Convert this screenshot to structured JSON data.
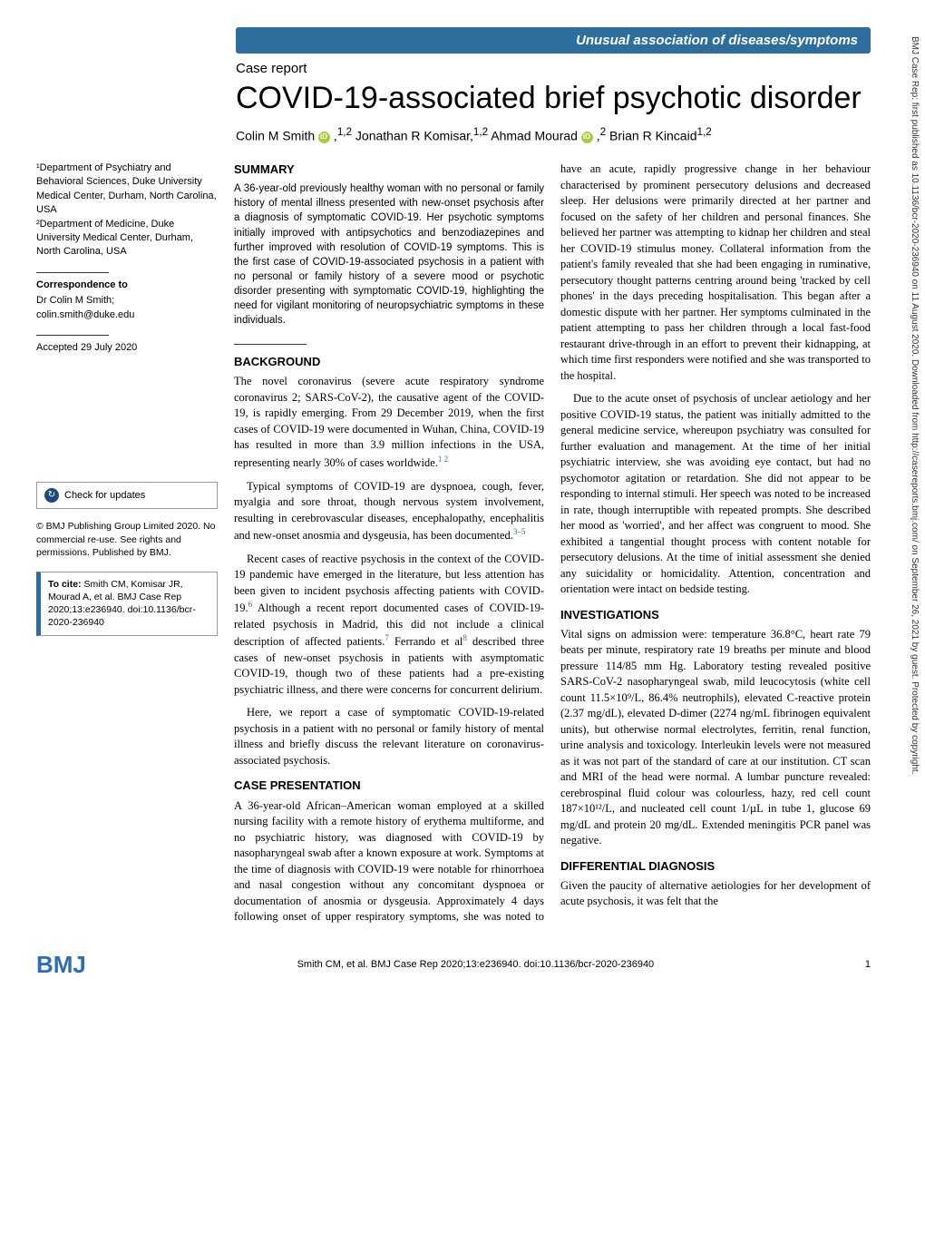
{
  "banner": "Unusual association of diseases/symptoms",
  "case_report_label": "Case report",
  "title": "COVID-19-associated brief psychotic disorder",
  "authors": {
    "a1": "Colin M Smith",
    "a1_aff": "1,2",
    "a2": "Jonathan R Komisar,",
    "a2_aff": "1,2",
    "a3": "Ahmad Mourad",
    "a3_aff": "2",
    "a4": "Brian R Kincaid",
    "a4_aff": "1,2"
  },
  "affil": {
    "l1": "¹Department of Psychiatry and Behavioral Sciences, Duke University Medical Center, Durham, North Carolina, USA",
    "l2": "²Department of Medicine, Duke University Medical Center, Durham, North Carolina, USA"
  },
  "correspondence": {
    "label": "Correspondence to",
    "body": "Dr Colin M Smith;\ncolin.smith@duke.edu"
  },
  "accepted": "Accepted 29 July 2020",
  "check_updates": "Check for updates",
  "copyright": "© BMJ Publishing Group Limited 2020. No commercial re-use. See rights and permissions. Published by BMJ.",
  "cite": {
    "label": "To cite:",
    "body": " Smith CM, Komisar JR, Mourad A, et al. BMJ Case Rep 2020;13:e236940. doi:10.1136/bcr-2020-236940"
  },
  "summary": {
    "head": "SUMMARY",
    "body": "A 36-year-old previously healthy woman with no personal or family history of mental illness presented with new-onset psychosis after a diagnosis of symptomatic COVID-19. Her psychotic symptoms initially improved with antipsychotics and benzodiazepines and further improved with resolution of COVID-19 symptoms. This is the first case of COVID-19-associated psychosis in a patient with no personal or family history of a severe mood or psychotic disorder presenting with symptomatic COVID-19, highlighting the need for vigilant monitoring of neuropsychiatric symptoms in these individuals."
  },
  "background": {
    "head": "BACKGROUND",
    "p1": "The novel coronavirus (severe acute respiratory syndrome coronavirus 2; SARS-CoV-2), the causative agent of the COVID-19, is rapidly emerging. From 29 December 2019, when the first cases of COVID-19 were documented in Wuhan, China, COVID-19 has resulted in more than 3.9 million infections in the USA, representing nearly 30% of cases worldwide.",
    "p1_ref": "1 2",
    "p2": "Typical symptoms of COVID-19 are dyspnoea, cough, fever, myalgia and sore throat, though nervous system involvement, resulting in cerebrovascular diseases, encephalopathy, encephalitis and new-onset anosmia and dysgeusia, has been documented.",
    "p2_ref": "3–5",
    "p3a": "Recent cases of reactive psychosis in the context of the COVID-19 pandemic have emerged in the literature, but less attention has been given to incident psychosis affecting patients with COVID-19.",
    "p3_ref1": "6",
    "p3b": " Although a recent report documented cases of COVID-19-related psychosis in Madrid, this did not include a clinical description of affected patients.",
    "p3_ref2": "7",
    "p3c": " Ferrando et al",
    "p3_ref3": "8",
    "p3d": " described three cases of new-onset psychosis in patients with asymptomatic COVID-19, though two of these patients had a pre-existing psychiatric illness, and there were concerns for concurrent delirium.",
    "p4": "Here, we report a case of symptomatic COVID-19-related psychosis in a patient with no personal or family history of mental illness and briefly discuss the relevant literature on coronavirus-associated psychosis."
  },
  "case_presentation": {
    "head": "CASE PRESENTATION",
    "p1": "A 36-year-old African–American woman employed at a skilled nursing facility with a remote history of erythema multiforme, and no psychiatric history, was diagnosed with COVID-19 by nasopharyngeal swab after a known exposure at work. Symptoms at the time of diagnosis with COVID-19 were notable for rhinorrhoea and nasal congestion without any concomitant dyspnoea or documentation of anosmia or dysgeusia. Approximately 4 days following onset of upper respiratory symptoms, she was noted to have an acute, rapidly progressive change in her behaviour characterised by prominent persecutory delusions and decreased sleep. Her delusions were primarily directed at her partner and focused on the safety of her children and personal finances. She believed her partner was attempting to kidnap her children and steal her COVID-19 stimulus money. Collateral information from the patient's family revealed that she had been engaging in ruminative, persecutory thought patterns centring around being 'tracked by cell phones' in the days preceding hospitalisation. This began after a domestic dispute with her partner. Her symptoms culminated in the patient attempting to pass her children through a local fast-food restaurant drive-through in an effort to prevent their kidnapping, at which time first responders were notified and she was transported to the hospital.",
    "p2": "Due to the acute onset of psychosis of unclear aetiology and her positive COVID-19 status, the patient was initially admitted to the general medicine service, whereupon psychiatry was consulted for further evaluation and management. At the time of her initial psychiatric interview, she was avoiding eye contact, but had no psychomotor agitation or retardation. She did not appear to be responding to internal stimuli. Her speech was noted to be increased in rate, though interruptible with repeated prompts. She described her mood as 'worried', and her affect was congruent to mood. She exhibited a tangential thought process with content notable for persecutory delusions. At the time of initial assessment she denied any suicidality or homicidality. Attention, concentration and orientation were intact on bedside testing."
  },
  "investigations": {
    "head": "INVESTIGATIONS",
    "p1": "Vital signs on admission were: temperature 36.8°C, heart rate 79 beats per minute, respiratory rate 19 breaths per minute and blood pressure 114/85 mm Hg. Laboratory testing revealed positive SARS-CoV-2 nasopharyngeal swab, mild leucocytosis (white cell count 11.5×10⁹/L, 86.4% neutrophils), elevated C-reactive protein (2.37 mg/dL), elevated D-dimer (2274 ng/mL fibrinogen equivalent units), but otherwise normal electrolytes, ferritin, renal function, urine analysis and toxicology. Interleukin levels were not measured as it was not part of the standard of care at our institution. CT scan and MRI of the head were normal. A lumbar puncture revealed: cerebrospinal fluid colour was colourless, hazy, red cell count 187×10¹²/L, and nucleated cell count 1/µL in tube 1, glucose 69 mg/dL and protein 20 mg/dL. Extended meningitis PCR panel was negative."
  },
  "differential": {
    "head": "DIFFERENTIAL DIAGNOSIS",
    "p1": "Given the paucity of alternative aetiologies for her development of acute psychosis, it was felt that the"
  },
  "footer": {
    "logo": "BMJ",
    "citation": "Smith CM, et al. BMJ Case Rep 2020;13:e236940. doi:10.1136/bcr-2020-236940",
    "page": "1"
  },
  "sidebar": "BMJ Case Rep: first published as 10.1136/bcr-2020-236940 on 11 August 2020. Downloaded from http://casereports.bmj.com/ on September 26, 2021 by guest. Protected by copyright."
}
